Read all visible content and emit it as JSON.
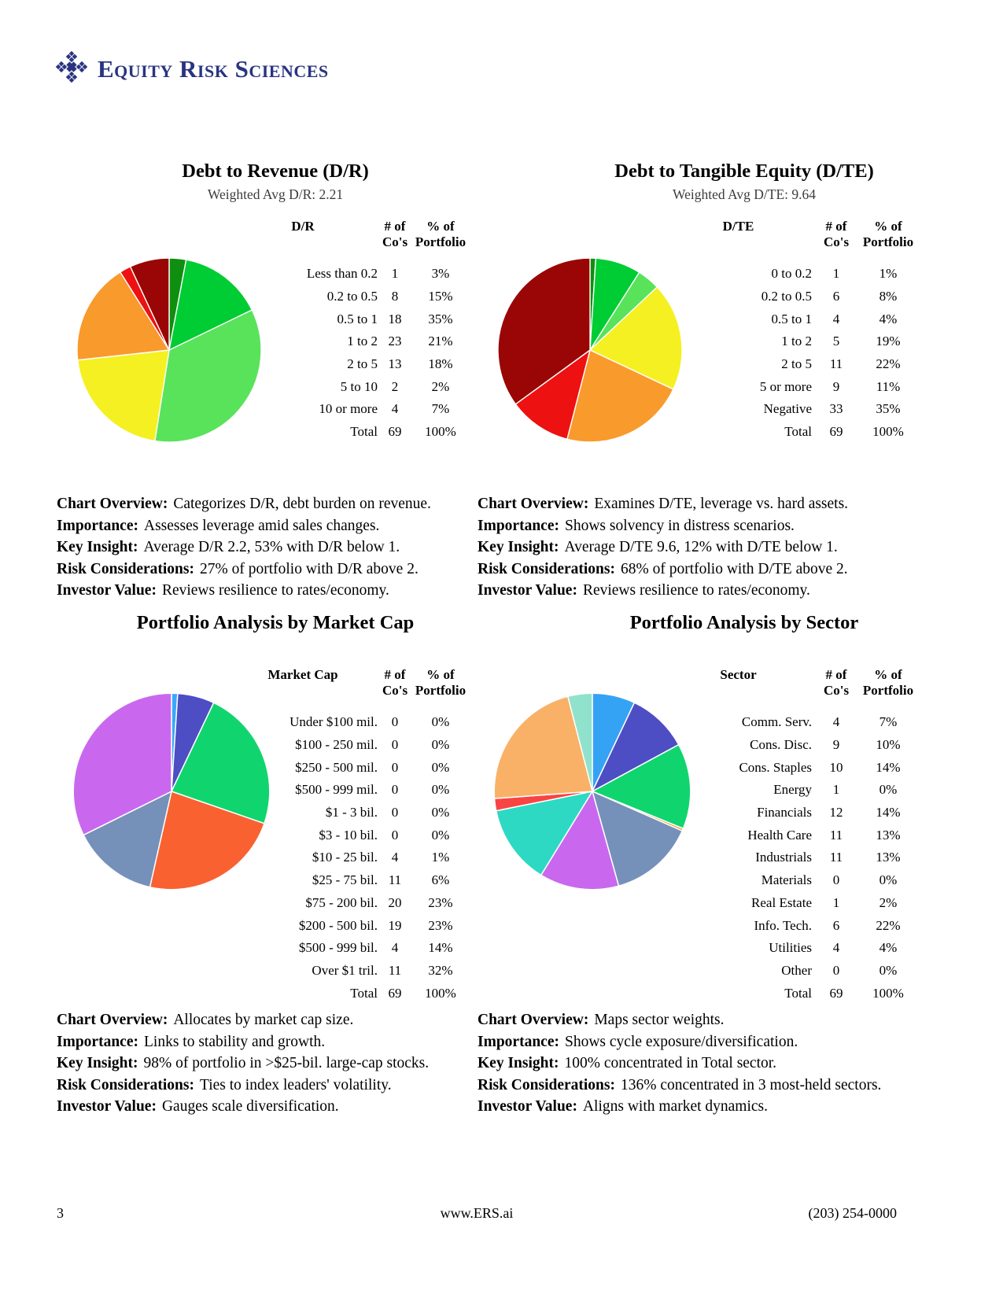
{
  "brand": {
    "name": "Equity Risk Sciences",
    "color": "#293480"
  },
  "shared_headers": {
    "count_line1": "# of",
    "count_line2": "Co's",
    "pct_line1": "% of",
    "pct_line2": "Portfolio"
  },
  "chart_data": [
    {
      "type": "pie",
      "title": "Debt to Revenue (D/R)",
      "subtitle": "Weighted Avg D/R: 2.21",
      "label_header": "D/R",
      "categories": [
        "Less than 0.2",
        "0.2 to 0.5",
        "0.5 to 1",
        "1 to 2",
        "2 to 5",
        "5 to 10",
        "10 or more"
      ],
      "counts": [
        "1",
        "8",
        "18",
        "23",
        "13",
        "2",
        "4"
      ],
      "percents": [
        "3%",
        "15%",
        "35%",
        "21%",
        "18%",
        "2%",
        "7%"
      ],
      "values": [
        3,
        15,
        35,
        21,
        18,
        2,
        7
      ],
      "colors": [
        "#0f8f0f",
        "#00cc33",
        "#58e35a",
        "#f5f021",
        "#f99a2c",
        "#ee1111",
        "#9a0606"
      ],
      "total_label": "Total",
      "total_count": "69",
      "total_pct": "100%",
      "descriptions": [
        {
          "label": "Chart Overview:",
          "text": "Categorizes D/R, debt burden on revenue."
        },
        {
          "label": "Importance:",
          "text": "Assesses leverage amid sales changes."
        },
        {
          "label": "Key Insight:",
          "text": "Average D/R 2.2, 53% with D/R below 1."
        },
        {
          "label": "Risk Considerations:",
          "text": "27% of portfolio with D/R above 2."
        },
        {
          "label": "Investor Value:",
          "text": "Reviews resilience to rates/economy."
        }
      ]
    },
    {
      "type": "pie",
      "title": "Debt to Tangible Equity (D/TE)",
      "subtitle": "Weighted Avg D/TE: 9.64",
      "label_header": "D/TE",
      "categories": [
        "0 to 0.2",
        "0.2 to 0.5",
        "0.5 to 1",
        "1 to 2",
        "2 to 5",
        "5 or more",
        "Negative"
      ],
      "counts": [
        "1",
        "6",
        "4",
        "5",
        "11",
        "9",
        "33"
      ],
      "percents": [
        "1%",
        "8%",
        "4%",
        "19%",
        "22%",
        "11%",
        "35%"
      ],
      "values": [
        1,
        8,
        4,
        19,
        22,
        11,
        35
      ],
      "colors": [
        "#0f8f0f",
        "#00cc33",
        "#58e35a",
        "#f5f021",
        "#f99a2c",
        "#ee1111",
        "#9a0606"
      ],
      "total_label": "Total",
      "total_count": "69",
      "total_pct": "100%",
      "descriptions": [
        {
          "label": "Chart Overview:",
          "text": "Examines D/TE, leverage vs. hard assets."
        },
        {
          "label": "Importance:",
          "text": "Shows solvency in distress scenarios."
        },
        {
          "label": "Key Insight:",
          "text": "Average D/TE 9.6, 12% with D/TE below 1."
        },
        {
          "label": "Risk Considerations:",
          "text": "68% of portfolio with D/TE above 2."
        },
        {
          "label": "Investor Value:",
          "text": "Reviews resilience to rates/economy."
        }
      ]
    },
    {
      "type": "pie",
      "title": "Portfolio Analysis by Market Cap",
      "label_header": "Market Cap",
      "categories": [
        "Under $100 mil.",
        "$100 - 250 mil.",
        "$250 - 500 mil.",
        "$500 - 999 mil.",
        "$1 - 3 bil.",
        "$3 - 10 bil.",
        "$10 - 25 bil.",
        "$25 - 75 bil.",
        "$75 - 200 bil.",
        "$200 - 500 bil.",
        "$500 - 999 bil.",
        "Over $1 tril."
      ],
      "counts": [
        "0",
        "0",
        "0",
        "0",
        "0",
        "0",
        "4",
        "11",
        "20",
        "19",
        "4",
        "11"
      ],
      "percents": [
        "0%",
        "0%",
        "0%",
        "0%",
        "0%",
        "0%",
        "1%",
        "6%",
        "23%",
        "23%",
        "14%",
        "32%"
      ],
      "values": [
        0,
        0,
        0,
        0,
        0,
        0,
        1,
        6,
        23,
        23,
        14,
        32
      ],
      "colors": [
        "#bbbbbb",
        "#bbbbbb",
        "#bbbbbb",
        "#bbbbbb",
        "#bbbbbb",
        "#bbbbbb",
        "#38aaf7",
        "#4d4dc4",
        "#10d56e",
        "#f96131",
        "#7591ba",
        "#c968ee"
      ],
      "total_label": "Total",
      "total_count": "69",
      "total_pct": "100%",
      "descriptions": [
        {
          "label": "Chart Overview:",
          "text": "Allocates by market cap size."
        },
        {
          "label": "Importance:",
          "text": "Links to stability and growth."
        },
        {
          "label": "Key Insight:",
          "text": "98% of portfolio in >$25-bil. large-cap stocks."
        },
        {
          "label": "Risk Considerations:",
          "text": "Ties to index leaders' volatility."
        },
        {
          "label": "Investor Value:",
          "text": "Gauges scale diversification."
        }
      ]
    },
    {
      "type": "pie",
      "title": "Portfolio Analysis by Sector",
      "label_header": "Sector",
      "categories": [
        "Comm. Serv.",
        "Cons. Disc.",
        "Cons. Staples",
        "Energy",
        "Financials",
        "Health Care",
        "Industrials",
        "Materials",
        "Real Estate",
        "Info. Tech.",
        "Utilities",
        "Other"
      ],
      "counts": [
        "4",
        "9",
        "10",
        "1",
        "12",
        "11",
        "11",
        "0",
        "1",
        "6",
        "4",
        "0"
      ],
      "percents": [
        "7%",
        "10%",
        "14%",
        "0%",
        "14%",
        "13%",
        "13%",
        "0%",
        "2%",
        "22%",
        "4%",
        "0%"
      ],
      "values": [
        7,
        10,
        14,
        0.4,
        14,
        13,
        13,
        0,
        2,
        22,
        4,
        0
      ],
      "colors": [
        "#35a3f4",
        "#4d4dc4",
        "#10d56e",
        "#f9a243",
        "#7591ba",
        "#c968ee",
        "#2ed9c3",
        "#bbbbbb",
        "#f94444",
        "#f9b168",
        "#90e2cd",
        "#bbbbbb"
      ],
      "total_label": "Total",
      "total_count": "69",
      "total_pct": "100%",
      "descriptions": [
        {
          "label": "Chart Overview:",
          "text": "Maps sector weights."
        },
        {
          "label": "Importance:",
          "text": "Shows cycle exposure/diversification."
        },
        {
          "label": "Key Insight:",
          "text": "100% concentrated in Total sector."
        },
        {
          "label": "Risk Considerations:",
          "text": "136% concentrated in 3 most-held sectors."
        },
        {
          "label": "Investor Value:",
          "text": "Aligns with market dynamics."
        }
      ]
    }
  ],
  "footer": {
    "page_number": "3",
    "website": "www.ERS.ai",
    "phone": "(203) 254-0000"
  }
}
